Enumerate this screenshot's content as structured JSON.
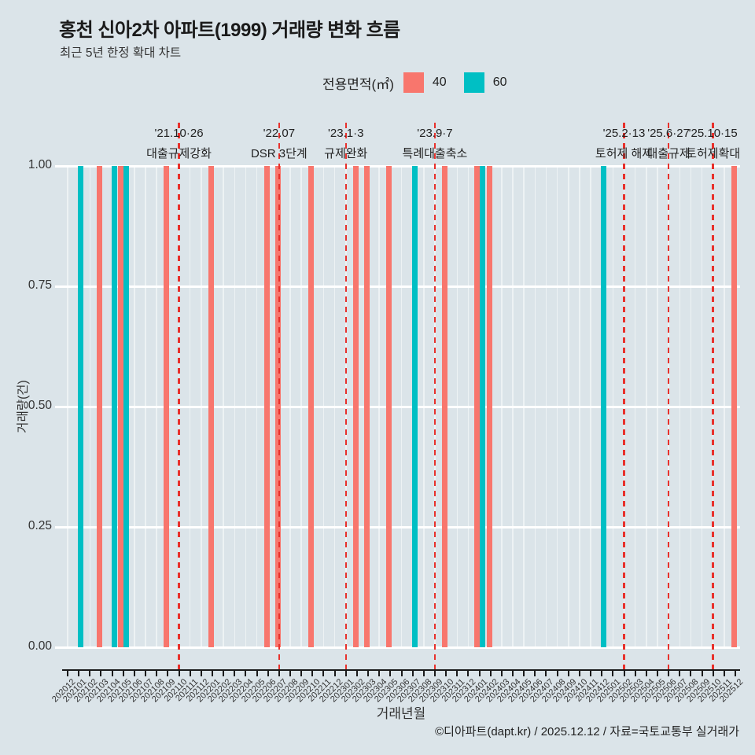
{
  "header": {
    "title": "홍천 신아2차 아파트(1999) 거래량 변화 흐름",
    "subtitle": "최근 5년 한정 확대 차트"
  },
  "legend": {
    "label": "전용면적(㎡)",
    "items": [
      {
        "label": "40",
        "color": "#f8766d"
      },
      {
        "label": "60",
        "color": "#00bfc4"
      }
    ]
  },
  "footer": {
    "credit": "©디아파트(dapt.kr) / 2025.12.12 / 자료=국토교통부 실거래가"
  },
  "chart_data": {
    "type": "bar",
    "title": "홍천 신아2차 아파트(1999) 거래량 변화 흐름",
    "subtitle": "최근 5년 한정 확대 차트",
    "xlabel": "거래년월",
    "ylabel": "거래량(건)",
    "ylim": [
      0,
      1
    ],
    "grid": "white major gridlines on light blue-gray panel",
    "legend_position": "top-center",
    "yticks": [
      {
        "v": 0.0,
        "label": "0.00"
      },
      {
        "v": 0.25,
        "label": "0.25"
      },
      {
        "v": 0.5,
        "label": "0.50"
      },
      {
        "v": 0.75,
        "label": "0.75"
      },
      {
        "v": 1.0,
        "label": "1.00"
      }
    ],
    "categories": [
      "202012",
      "202101",
      "202102",
      "202103",
      "202104",
      "202105",
      "202106",
      "202107",
      "202108",
      "202109",
      "202110",
      "202111",
      "202112",
      "202201",
      "202202",
      "202203",
      "202204",
      "202205",
      "202206",
      "202207",
      "202208",
      "202209",
      "202210",
      "202211",
      "202212",
      "202301",
      "202302",
      "202303",
      "202304",
      "202305",
      "202306",
      "202307",
      "202308",
      "202309",
      "202310",
      "202311",
      "202312",
      "202401",
      "202402",
      "202403",
      "202404",
      "202405",
      "202406",
      "202407",
      "202408",
      "202409",
      "202410",
      "202411",
      "202412",
      "202501",
      "202502",
      "202503",
      "202504",
      "202505",
      "202506",
      "202507",
      "202508",
      "202509",
      "202510",
      "202511",
      "202512"
    ],
    "series": [
      {
        "name": "40",
        "color": "#f8766d",
        "values": {
          "202103": 1,
          "202105": 1,
          "202109": 1,
          "202201": 1,
          "202206": 1,
          "202207": 1,
          "202210": 1,
          "202302": 1,
          "202303": 1,
          "202305": 1,
          "202310": 1,
          "202401": 1,
          "202402": 1,
          "202512": 1
        }
      },
      {
        "name": "60",
        "color": "#00bfc4",
        "values": {
          "202101": 1,
          "202104": 1,
          "202105": 1,
          "202307": 1,
          "202401": 1,
          "202412": 1
        }
      }
    ],
    "annotations": [
      {
        "date": "'21.10·26",
        "label": "대출규제강화",
        "month": "202110"
      },
      {
        "date": "'22.07",
        "label": "DSR 3단계",
        "month": "202207"
      },
      {
        "date": "'23.1·3",
        "label": "규제완화",
        "month": "202301"
      },
      {
        "date": "'23.9·7",
        "label": "특례대출축소",
        "month": "202309"
      },
      {
        "date": "'25.2·13",
        "label": "토허제 해제",
        "month": "202502"
      },
      {
        "date": "'25.6·27",
        "label": "대출규제",
        "month": "202506"
      },
      {
        "date": "'25.10·15",
        "label": "토허제확대",
        "month": "202510"
      }
    ],
    "annotation_line_color": "#e8312c"
  }
}
